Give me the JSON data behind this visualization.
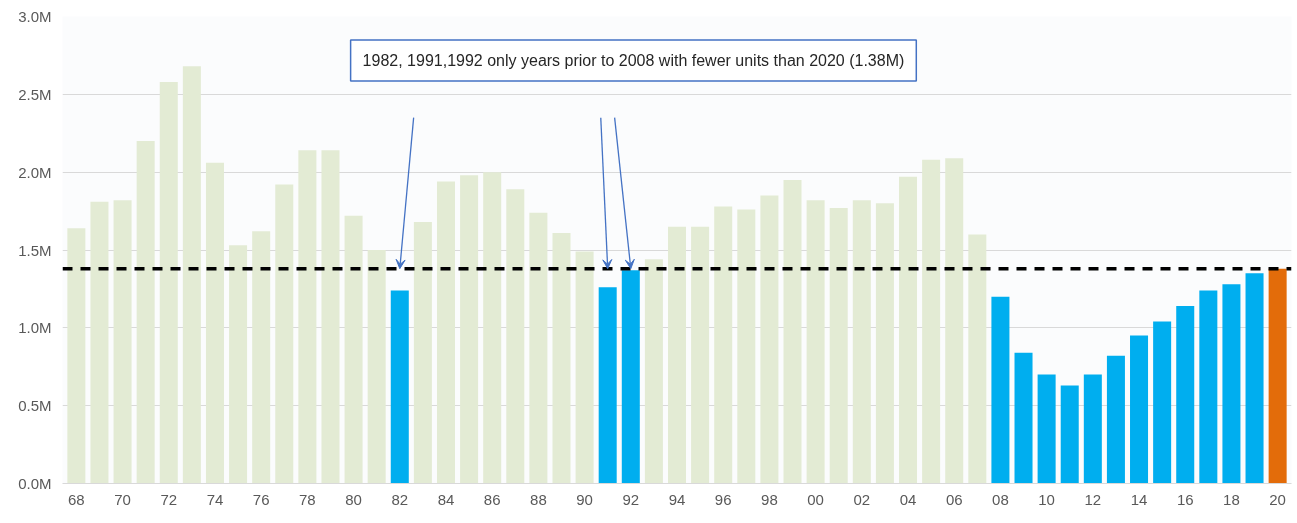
{
  "chart_data": {
    "type": "bar",
    "categories": [
      "68",
      null,
      "70",
      null,
      "72",
      null,
      "74",
      null,
      "76",
      null,
      "78",
      null,
      "80",
      null,
      "82",
      null,
      "84",
      null,
      "86",
      null,
      "88",
      null,
      "90",
      null,
      "92",
      null,
      "94",
      null,
      "96",
      null,
      "98",
      null,
      "00",
      null,
      "02",
      null,
      "04",
      null,
      "06",
      null,
      "08",
      null,
      "10",
      null,
      "12",
      null,
      "14",
      null,
      "16",
      null,
      "18",
      null,
      "20"
    ],
    "values": [
      1.64,
      1.81,
      1.82,
      2.2,
      2.58,
      2.68,
      2.06,
      1.53,
      1.62,
      1.92,
      2.14,
      2.14,
      1.72,
      1.5,
      1.24,
      1.68,
      1.94,
      1.98,
      2.0,
      1.89,
      1.74,
      1.61,
      1.49,
      1.26,
      1.37,
      1.44,
      1.65,
      1.65,
      1.78,
      1.76,
      1.85,
      1.95,
      1.82,
      1.77,
      1.82,
      1.8,
      1.97,
      2.08,
      2.09,
      1.6,
      1.2,
      0.84,
      0.7,
      0.63,
      0.7,
      0.82,
      0.95,
      1.04,
      1.14,
      1.24,
      1.28,
      1.35,
      1.38
    ],
    "colors": [
      "#e3ebd4",
      "#e3ebd4",
      "#e3ebd4",
      "#e3ebd4",
      "#e3ebd4",
      "#e3ebd4",
      "#e3ebd4",
      "#e3ebd4",
      "#e3ebd4",
      "#e3ebd4",
      "#e3ebd4",
      "#e3ebd4",
      "#e3ebd4",
      "#e3ebd4",
      "#00aeef",
      "#e3ebd4",
      "#e3ebd4",
      "#e3ebd4",
      "#e3ebd4",
      "#e3ebd4",
      "#e3ebd4",
      "#e3ebd4",
      "#e3ebd4",
      "#00aeef",
      "#00aeef",
      "#e3ebd4",
      "#e3ebd4",
      "#e3ebd4",
      "#e3ebd4",
      "#e3ebd4",
      "#e3ebd4",
      "#e3ebd4",
      "#e3ebd4",
      "#e3ebd4",
      "#e3ebd4",
      "#e3ebd4",
      "#e3ebd4",
      "#e3ebd4",
      "#e3ebd4",
      "#e3ebd4",
      "#00aeef",
      "#00aeef",
      "#00aeef",
      "#00aeef",
      "#00aeef",
      "#00aeef",
      "#00aeef",
      "#00aeef",
      "#00aeef",
      "#00aeef",
      "#00aeef",
      "#00aeef",
      "#e36c0a"
    ],
    "ylim": [
      0,
      3.0
    ],
    "yticks": [
      {
        "value": 0,
        "label": "0.0M"
      },
      {
        "value": 0.5,
        "label": "0.5M"
      },
      {
        "value": 1.0,
        "label": "1.0M"
      },
      {
        "value": 1.5,
        "label": "1.5M"
      },
      {
        "value": 2.0,
        "label": "2.0M"
      },
      {
        "value": 2.5,
        "label": "2.5M"
      },
      {
        "value": 3.0,
        "label": "3.0M"
      }
    ],
    "grid": "y",
    "ref_lines": [
      {
        "axis": "y",
        "value": 1.38,
        "color": "#000000",
        "line_style": "dashed"
      }
    ],
    "annotations": [
      "1982, 1991,1992 only years prior to 2008 with fewer units than 2020 (1.38M)"
    ]
  }
}
